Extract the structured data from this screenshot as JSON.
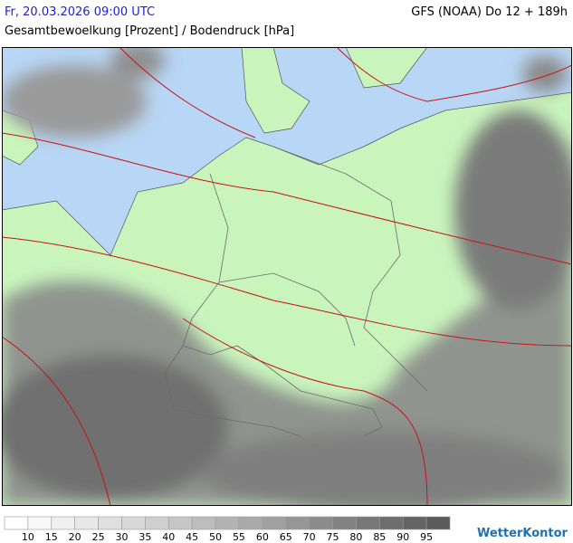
{
  "header": {
    "date": "Fr, 20.03.2026 09:00 UTC",
    "model": "GFS (NOAA) Do 12 + 189h",
    "subtitle": "Gesamtbewoelkung [Prozent] / Bodendruck [hPa]"
  },
  "legend": {
    "labels": [
      "10",
      "15",
      "20",
      "25",
      "30",
      "35",
      "40",
      "45",
      "50",
      "55",
      "60",
      "65",
      "70",
      "75",
      "80",
      "85",
      "90",
      "95"
    ],
    "colors": [
      "#ffffff",
      "#f8f8f8",
      "#f0f0f0",
      "#e8e8e8",
      "#e0e0e0",
      "#d8d8d8",
      "#cfcfcf",
      "#c6c6c6",
      "#bdbdbd",
      "#b3b3b3",
      "#aaaaaa",
      "#a0a0a0",
      "#969696",
      "#8c8c8c",
      "#828282",
      "#787878",
      "#6e6e6e",
      "#646464",
      "#5a5a5a"
    ]
  },
  "logo": "WetterKontor"
}
